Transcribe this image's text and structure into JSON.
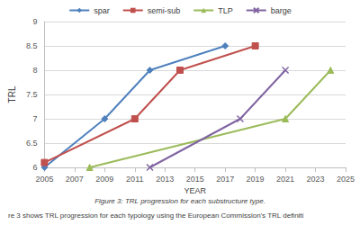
{
  "chart_data": {
    "type": "line",
    "caption": "Figure 3: TRL progression for each substructure type.",
    "footer_text": "re 3 shows TRL progression for each typology using the European Commission's TRL definiti",
    "x_label": "YEAR",
    "y_label": "TRL",
    "xlim": [
      2005,
      2025
    ],
    "xticks": [
      2005,
      2007,
      2009,
      2011,
      2013,
      2015,
      2017,
      2019,
      2021,
      2023,
      2025
    ],
    "ylim": [
      6,
      9
    ],
    "yticks": [
      6,
      6.5,
      7,
      7.5,
      8,
      8.5,
      9
    ],
    "grid": true,
    "legend": "top",
    "series": [
      {
        "name": "spar",
        "color": "#4f81bd",
        "marker": "diamond",
        "x": [
          2005,
          2009,
          2012,
          2017
        ],
        "values": [
          6,
          7,
          8,
          8.5
        ]
      },
      {
        "name": "semi-sub",
        "color": "#c0504d",
        "marker": "square",
        "x": [
          2005,
          2011,
          2014,
          2019
        ],
        "values": [
          6.1,
          7,
          8,
          8.5
        ]
      },
      {
        "name": "TLP",
        "color": "#9bbb59",
        "marker": "triangle",
        "x": [
          2008,
          2021,
          2024
        ],
        "values": [
          6,
          7,
          8
        ]
      },
      {
        "name": "barge",
        "color": "#8064a2",
        "marker": "x",
        "x": [
          2012,
          2018,
          2021
        ],
        "values": [
          6,
          7,
          8
        ]
      }
    ]
  }
}
